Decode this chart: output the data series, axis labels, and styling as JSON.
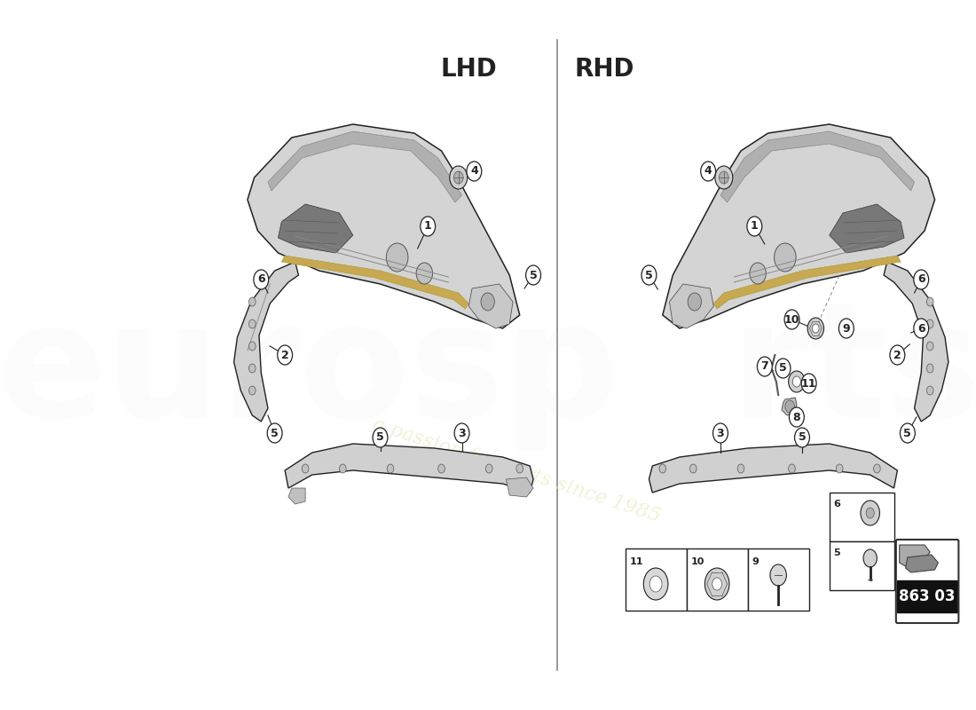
{
  "bg_color": "#ffffff",
  "lc": "#222222",
  "fc_main": "#d0d0d0",
  "fc_dark": "#888888",
  "fc_med": "#b8b8b8",
  "fc_light": "#e8e8e8",
  "fc_gold": "#c8a850",
  "divider_color": "#888888",
  "lhd_label": "LHD",
  "rhd_label": "RHD",
  "diagram_code": "863 03",
  "watermark_text": "a passion for parts since 1985",
  "circle_r": 0.018,
  "font_lhd": 20,
  "font_num": 9,
  "font_code": 12
}
